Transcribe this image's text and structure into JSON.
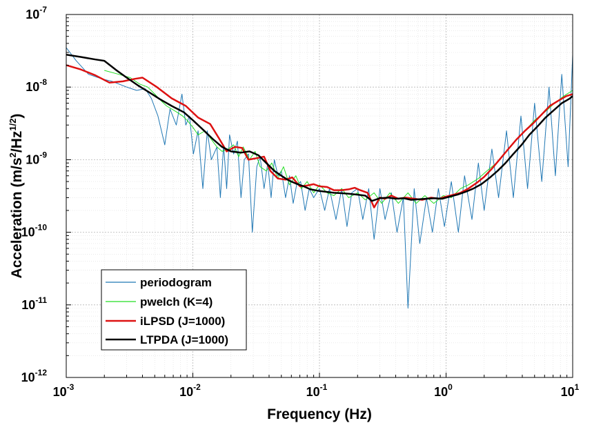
{
  "chart_data": {
    "type": "line",
    "title": "",
    "xlabel": "Frequency (Hz)",
    "ylabel": "Acceleration (m/s²/Hz¹ᐟ²)",
    "ylabel_parts": {
      "a": "Acceleration (m/s",
      "a_sup": "2",
      "b": "/Hz",
      "b_sup": "1/2",
      "c": ")"
    },
    "xscale": "log",
    "yscale": "log",
    "xlim": [
      0.001,
      10
    ],
    "ylim": [
      1e-12,
      1e-07
    ],
    "grid": true,
    "legend_position": "bottom-left",
    "x_ticks": [
      {
        "base": "10",
        "exp": "-3",
        "value": 0.001
      },
      {
        "base": "10",
        "exp": "-2",
        "value": 0.01
      },
      {
        "base": "10",
        "exp": "-1",
        "value": 0.1
      },
      {
        "base": "10",
        "exp": "0",
        "value": 1
      },
      {
        "base": "10",
        "exp": "1",
        "value": 10
      }
    ],
    "y_ticks": [
      {
        "base": "10",
        "exp": "-12",
        "value": 1e-12
      },
      {
        "base": "10",
        "exp": "-11",
        "value": 1e-11
      },
      {
        "base": "10",
        "exp": "-10",
        "value": 1e-10
      },
      {
        "base": "10",
        "exp": "-9",
        "value": 1e-09
      },
      {
        "base": "10",
        "exp": "-8",
        "value": 1e-08
      },
      {
        "base": "10",
        "exp": "-7",
        "value": 1e-07
      }
    ],
    "series": [
      {
        "name": "periodogram",
        "color": "#1f77b4",
        "line_width": 1,
        "x": [
          0.001,
          0.0012,
          0.0015,
          0.0019,
          0.0023,
          0.003,
          0.0036,
          0.0042,
          0.0047,
          0.0053,
          0.006,
          0.0066,
          0.0074,
          0.0082,
          0.0088,
          0.0094,
          0.0101,
          0.011,
          0.012,
          0.013,
          0.014,
          0.0155,
          0.0165,
          0.0175,
          0.0185,
          0.0195,
          0.021,
          0.0225,
          0.024,
          0.0255,
          0.0275,
          0.0295,
          0.032,
          0.034,
          0.0365,
          0.039,
          0.0415,
          0.044,
          0.047,
          0.05,
          0.054,
          0.058,
          0.062,
          0.066,
          0.071,
          0.077,
          0.083,
          0.09,
          0.1,
          0.11,
          0.12,
          0.135,
          0.15,
          0.165,
          0.18,
          0.2,
          0.22,
          0.245,
          0.27,
          0.3,
          0.33,
          0.37,
          0.41,
          0.46,
          0.5,
          0.56,
          0.62,
          0.7,
          0.78,
          0.87,
          0.97,
          1.1,
          1.25,
          1.4,
          1.6,
          1.8,
          2.0,
          2.3,
          2.6,
          3.0,
          3.4,
          3.9,
          4.4,
          5.0,
          5.7,
          6.5,
          7.3,
          8.2,
          9.2,
          10
        ],
        "values": [
          3.5e-08,
          2.3e-08,
          1.5e-08,
          1.3e-08,
          1.2e-08,
          1e-08,
          9e-09,
          9.5e-09,
          7e-09,
          4e-09,
          1.6e-09,
          5e-09,
          3e-09,
          8e-09,
          3e-09,
          4e-09,
          1.2e-09,
          2.5e-09,
          4e-10,
          2.5e-09,
          1e-09,
          1.5e-09,
          3e-10,
          1.6e-09,
          4e-10,
          2.2e-09,
          1.2e-09,
          1.8e-09,
          3e-10,
          1e-09,
          1.2e-09,
          1e-10,
          8e-10,
          1.1e-09,
          4e-10,
          9e-10,
          3e-10,
          1e-09,
          6e-10,
          7e-10,
          3e-10,
          6e-10,
          2.5e-10,
          4.5e-10,
          5e-10,
          2e-10,
          4e-10,
          3e-10,
          4e-10,
          2e-10,
          4e-10,
          1.5e-10,
          4e-10,
          1.2e-10,
          3.5e-10,
          4e-10,
          1.5e-10,
          4e-10,
          8e-11,
          4e-10,
          1.5e-10,
          3.5e-10,
          1e-10,
          3e-10,
          9e-12,
          4e-10,
          7e-11,
          3e-10,
          1e-10,
          4e-10,
          1.2e-10,
          5e-10,
          1e-10,
          6e-10,
          1.5e-10,
          9e-10,
          2e-10,
          1.4e-09,
          3e-10,
          2.5e-09,
          3e-10,
          4e-09,
          4e-10,
          6e-09,
          5e-10,
          1e-08,
          6e-10,
          1.5e-08,
          8e-10,
          2.8e-08
        ]
      },
      {
        "name": "pwelch (K=4)",
        "color": "#22dd22",
        "line_width": 1,
        "x": [
          0.002,
          0.0026,
          0.0032,
          0.0038,
          0.0044,
          0.005,
          0.0056,
          0.0062,
          0.0068,
          0.0075,
          0.0083,
          0.009,
          0.01,
          0.011,
          0.0125,
          0.014,
          0.0155,
          0.017,
          0.019,
          0.021,
          0.023,
          0.025,
          0.028,
          0.031,
          0.034,
          0.038,
          0.042,
          0.047,
          0.052,
          0.058,
          0.065,
          0.072,
          0.08,
          0.09,
          0.1,
          0.115,
          0.13,
          0.15,
          0.17,
          0.2,
          0.23,
          0.27,
          0.31,
          0.36,
          0.42,
          0.5,
          0.58,
          0.68,
          0.8,
          0.95,
          1.1,
          1.3,
          1.5,
          1.8,
          2.1,
          2.5,
          3.0,
          3.5,
          4.2,
          5.0,
          6.0,
          7.2,
          8.5,
          10
        ],
        "values": [
          1.7e-08,
          1.5e-08,
          1.35e-08,
          1.1e-08,
          1e-08,
          8e-09,
          6.5e-09,
          5.5e-09,
          5e-09,
          4.5e-09,
          4e-09,
          3.5e-09,
          2.8e-09,
          2.2e-09,
          2.5e-09,
          1.9e-09,
          1.5e-09,
          1.3e-09,
          1.4e-09,
          1.6e-09,
          1.1e-09,
          1.5e-09,
          1e-09,
          1.3e-09,
          8e-10,
          7e-10,
          9e-10,
          5.5e-10,
          8e-10,
          4.5e-10,
          6e-10,
          4e-10,
          5e-10,
          3.5e-10,
          4.5e-10,
          3.5e-10,
          3.2e-10,
          4e-10,
          3e-10,
          3.5e-10,
          2.8e-10,
          3.5e-10,
          2.5e-10,
          3.5e-10,
          2.5e-10,
          3.5e-10,
          2.5e-10,
          3.2e-10,
          2.5e-10,
          3.2e-10,
          3e-10,
          4e-10,
          4.5e-10,
          5.5e-10,
          7e-10,
          9e-10,
          1.3e-09,
          1.8e-09,
          2.5e-09,
          3.5e-09,
          4.5e-09,
          6e-09,
          7.5e-09,
          9e-09
        ]
      },
      {
        "name": "iLPSD (J=1000)",
        "color": "#dd1111",
        "line_width": 2.5,
        "x": [
          0.001,
          0.0013,
          0.0017,
          0.0022,
          0.0028,
          0.0035,
          0.004,
          0.0052,
          0.0068,
          0.0088,
          0.011,
          0.0137,
          0.0163,
          0.0185,
          0.0215,
          0.0245,
          0.0275,
          0.032,
          0.0365,
          0.041,
          0.047,
          0.054,
          0.061,
          0.07,
          0.08,
          0.09,
          0.1,
          0.115,
          0.13,
          0.15,
          0.17,
          0.19,
          0.21,
          0.24,
          0.27,
          0.3,
          0.33,
          0.37,
          0.42,
          0.48,
          0.56,
          0.65,
          0.76,
          0.88,
          1.0,
          1.15,
          1.3,
          1.5,
          1.75,
          2.0,
          2.3,
          2.7,
          3.1,
          3.6,
          4.2,
          4.9,
          5.7,
          6.6,
          7.7,
          8.9,
          10
        ],
        "values": [
          2e-08,
          1.75e-08,
          1.45e-08,
          1.15e-08,
          1.2e-08,
          1.3e-08,
          1.35e-08,
          1e-08,
          7e-09,
          5.5e-09,
          3.8e-09,
          3.1e-09,
          1.9e-09,
          1.3e-09,
          1.5e-09,
          1.45e-09,
          1e-09,
          1.05e-09,
          1.1e-09,
          7e-10,
          5.5e-10,
          5.3e-10,
          5.7e-10,
          4.3e-10,
          4.4e-10,
          4.6e-10,
          4.3e-10,
          4.2e-10,
          3.8e-10,
          3.8e-10,
          3.9e-10,
          4.1e-10,
          3.8e-10,
          3.5e-10,
          2.2e-10,
          3e-10,
          2.9e-10,
          3.2e-10,
          2.9e-10,
          3e-10,
          2.9e-10,
          2.8e-10,
          3e-10,
          2.9e-10,
          3.1e-10,
          3.3e-10,
          3.5e-10,
          4e-10,
          4.8e-10,
          5.8e-10,
          7.5e-10,
          1.05e-09,
          1.4e-09,
          1.9e-09,
          2.5e-09,
          3.2e-09,
          4.2e-09,
          5.5e-09,
          6.5e-09,
          7.5e-09,
          8e-09
        ]
      },
      {
        "name": "LTPDA (J=1000)",
        "color": "#000000",
        "line_width": 2.5,
        "x": [
          0.001,
          0.0013,
          0.0017,
          0.002,
          0.0025,
          0.003,
          0.0037,
          0.0045,
          0.0055,
          0.0068,
          0.0085,
          0.01,
          0.012,
          0.0145,
          0.017,
          0.02,
          0.024,
          0.028,
          0.033,
          0.038,
          0.044,
          0.05,
          0.057,
          0.065,
          0.075,
          0.085,
          0.1,
          0.115,
          0.13,
          0.15,
          0.17,
          0.2,
          0.23,
          0.26,
          0.3,
          0.35,
          0.4,
          0.46,
          0.53,
          0.61,
          0.7,
          0.81,
          0.93,
          1.07,
          1.23,
          1.42,
          1.64,
          1.9,
          2.2,
          2.55,
          2.95,
          3.4,
          3.95,
          4.55,
          5.3,
          6.1,
          7.1,
          8.2,
          9.4,
          10
        ],
        "values": [
          2.8e-08,
          2.6e-08,
          2.4e-08,
          2.3e-08,
          1.7e-08,
          1.35e-08,
          1.05e-08,
          8.5e-09,
          6.8e-09,
          5.5e-09,
          4.5e-09,
          3.5e-09,
          2.6e-09,
          1.9e-09,
          1.5e-09,
          1.3e-09,
          1.25e-09,
          1.3e-09,
          1.15e-09,
          9e-10,
          7e-10,
          6e-10,
          5.2e-10,
          4.7e-10,
          4.3e-10,
          3.9e-10,
          3.7e-10,
          3.6e-10,
          3.5e-10,
          3.45e-10,
          3.4e-10,
          3.3e-10,
          3.2e-10,
          2.7e-10,
          2.95e-10,
          3e-10,
          2.9e-10,
          2.95e-10,
          2.8e-10,
          2.85e-10,
          2.9e-10,
          2.95e-10,
          2.9e-10,
          3.1e-10,
          3.3e-10,
          3.6e-10,
          4e-10,
          4.6e-10,
          5.6e-10,
          7e-10,
          9e-10,
          1.2e-09,
          1.6e-09,
          2.2e-09,
          2.9e-09,
          3.8e-09,
          4.8e-09,
          6e-09,
          6.9e-09,
          7.5e-09
        ]
      }
    ]
  }
}
